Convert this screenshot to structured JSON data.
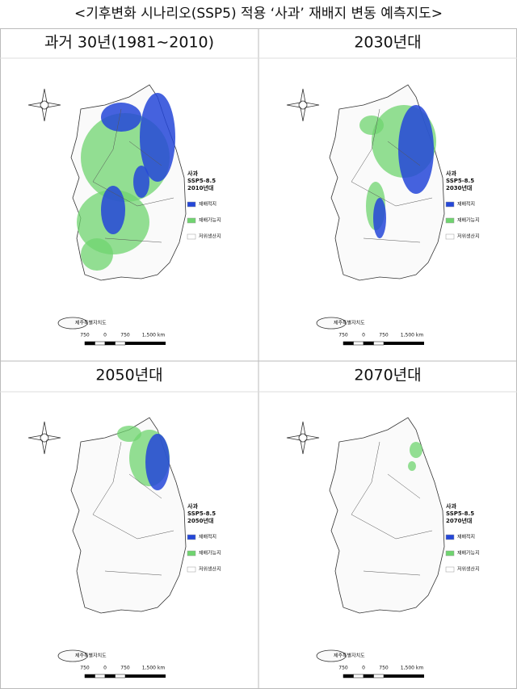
{
  "title": "<기후변화 시나리오(SSP5) 적용 ‘사과’ 재배지 변동 예측지도>",
  "panels": [
    {
      "header": "과거 30년(1981∼2010)",
      "legend": {
        "crop": "사과",
        "scenario": "SSP5-8.5",
        "period": "2010년대"
      }
    },
    {
      "header": "2030년대",
      "legend": {
        "crop": "사과",
        "scenario": "SSP5-8.5",
        "period": "2030년대"
      }
    },
    {
      "header": "2050년대",
      "legend": {
        "crop": "사과",
        "scenario": "SSP5-8.5",
        "period": "2050년대"
      }
    },
    {
      "header": "2070년대",
      "legend": {
        "crop": "사과",
        "scenario": "SSP5-8.5",
        "period": "2070년대"
      }
    }
  ],
  "legend_items": [
    "재배적지",
    "재배가능지",
    "저위생산지"
  ],
  "scale_labels": [
    "750",
    "0",
    "750",
    "1,500 km"
  ],
  "island_label": "제주특별자치도"
}
